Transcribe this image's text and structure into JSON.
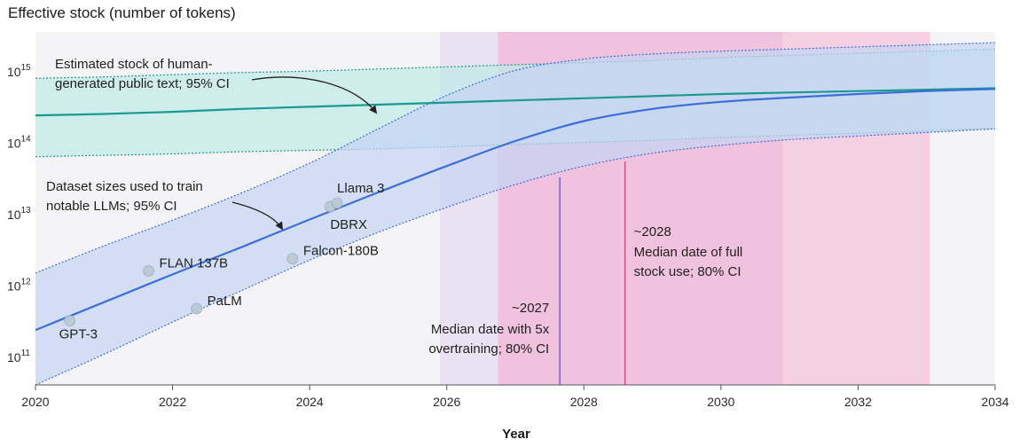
{
  "chart_data": {
    "type": "line",
    "title": "Effective stock (number of tokens)",
    "xlabel": "Year",
    "ylabel": "",
    "x_range": [
      2020,
      2034
    ],
    "y_scale": "log10",
    "y_range_log10": [
      10.6,
      15.55
    ],
    "x_ticks": [
      {
        "value": 2020,
        "label": "2020"
      },
      {
        "value": 2022,
        "label": "2022"
      },
      {
        "value": 2024,
        "label": "2024"
      },
      {
        "value": 2026,
        "label": "2026"
      },
      {
        "value": 2028,
        "label": "2028"
      },
      {
        "value": 2030,
        "label": "2030"
      },
      {
        "value": 2032,
        "label": "2032"
      },
      {
        "value": 2034,
        "label": "2034"
      }
    ],
    "y_ticks": [
      {
        "exp": 11,
        "base": "10",
        "sup": "11"
      },
      {
        "exp": 12,
        "base": "10",
        "sup": "12"
      },
      {
        "exp": 13,
        "base": "10",
        "sup": "13"
      },
      {
        "exp": 14,
        "base": "10",
        "sup": "14"
      },
      {
        "exp": 15,
        "base": "10",
        "sup": "15"
      }
    ],
    "series": [
      {
        "name": "Estimated stock of human-generated public text",
        "color": "#1a9a90",
        "band_color": "#bfe9e6",
        "x": [
          2020,
          2021,
          2022,
          2023,
          2024,
          2025,
          2026,
          2027,
          2028,
          2029,
          2030,
          2031,
          2032,
          2033,
          2034
        ],
        "median_log10": [
          14.38,
          14.4,
          14.43,
          14.47,
          14.5,
          14.53,
          14.56,
          14.59,
          14.62,
          14.65,
          14.68,
          14.7,
          14.72,
          14.74,
          14.76
        ],
        "lower_log10": [
          13.8,
          13.82,
          13.84,
          13.87,
          13.89,
          13.91,
          13.94,
          13.97,
          14.0,
          14.03,
          14.07,
          14.1,
          14.13,
          14.16,
          14.2
        ],
        "upper_log10": [
          14.9,
          14.92,
          14.95,
          14.98,
          15.0,
          15.03,
          15.06,
          15.09,
          15.12,
          15.15,
          15.19,
          15.22,
          15.25,
          15.28,
          15.31
        ]
      },
      {
        "name": "Dataset sizes used to train notable LLMs",
        "color": "#3a6fd8",
        "band_color": "#c4d4f4",
        "x": [
          2020,
          2021,
          2022,
          2023,
          2024,
          2025,
          2026,
          2027,
          2028,
          2029,
          2030,
          2031,
          2032,
          2033,
          2034
        ],
        "median_log10": [
          11.37,
          11.76,
          12.15,
          12.53,
          12.92,
          13.3,
          13.67,
          14.02,
          14.3,
          14.47,
          14.57,
          14.63,
          14.68,
          14.72,
          14.75
        ],
        "lower_log10": [
          10.6,
          11.03,
          11.48,
          11.92,
          12.35,
          12.74,
          13.09,
          13.41,
          13.67,
          13.85,
          13.96,
          14.04,
          14.09,
          14.14,
          14.19
        ],
        "upper_log10": [
          12.17,
          12.55,
          12.91,
          13.29,
          13.71,
          14.19,
          14.66,
          15.01,
          15.17,
          15.24,
          15.28,
          15.31,
          15.34,
          15.37,
          15.4
        ]
      }
    ],
    "models": [
      {
        "name": "GPT-3",
        "year": 2020.5,
        "log10_tokens": 11.5
      },
      {
        "name": "FLAN 137B",
        "year": 2021.65,
        "log10_tokens": 12.2
      },
      {
        "name": "PaLM",
        "year": 2022.35,
        "log10_tokens": 11.67
      },
      {
        "name": "Falcon-180B",
        "year": 2023.75,
        "log10_tokens": 12.37
      },
      {
        "name": "DBRX",
        "year": 2024.3,
        "log10_tokens": 13.1
      },
      {
        "name": "Llama 3",
        "year": 2024.4,
        "log10_tokens": 13.15
      }
    ],
    "shaded_regions": [
      {
        "name": "5x overtraining 80% CI outer",
        "x_start": 2025.9,
        "x_end": 2030.9,
        "color": "#e6dcf2"
      },
      {
        "name": "5x overtraining 80% CI inner",
        "x_start": 2026.75,
        "x_end": 2030.9,
        "color": "#dcb4dc"
      },
      {
        "name": "Full stock use 80% CI",
        "x_start": 2026.75,
        "x_end": 2033.05,
        "color": "#f6c4dc"
      }
    ],
    "median_lines": [
      {
        "year": 2027.65,
        "color": "#7a5ae0",
        "label": "~2027",
        "caption": [
          "Median date with 5x",
          "overtraining; 80% CI"
        ]
      },
      {
        "year": 2028.6,
        "color": "#e8477f",
        "label": "~2028",
        "caption": [
          "Median date of full",
          "stock use; 80% CI"
        ]
      }
    ],
    "annotations": {
      "stock_label": [
        "Estimated stock of human-",
        "generated public text; 95% CI"
      ],
      "dataset_label": [
        "Dataset sizes used to train",
        "notable LLMs; 95% CI"
      ]
    }
  }
}
